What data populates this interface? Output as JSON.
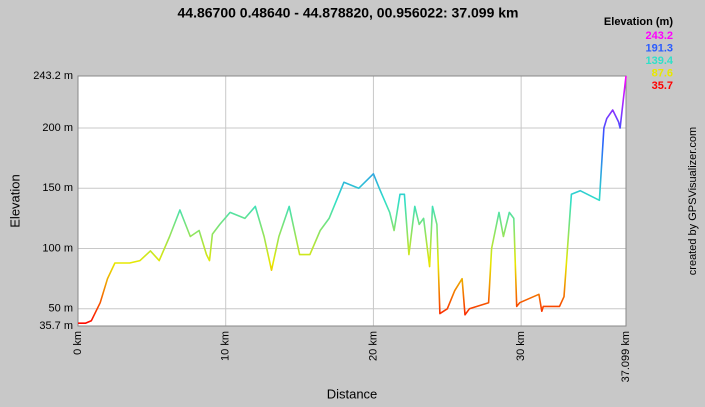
{
  "chart_data": {
    "type": "line",
    "title": "44.86700 0.48640 - 44.878820, 00.956022: 37.099 km",
    "x_label": "Distance",
    "y_label": "Elevation",
    "credit": "created by GPSVisualizer.com",
    "legend_title": "Elevation (m)",
    "color_scale": [
      {
        "value": 243.2,
        "color": "#ff00ff"
      },
      {
        "value": 191.3,
        "color": "#2a5cff"
      },
      {
        "value": 139.4,
        "color": "#30e0c8"
      },
      {
        "value": 87.6,
        "color": "#e8e800"
      },
      {
        "value": 35.7,
        "color": "#ff0000"
      }
    ],
    "grid": true,
    "xlim": [
      0,
      37.099
    ],
    "ylim": [
      35.7,
      243.2
    ],
    "xticks": [
      {
        "value": 0,
        "label": "0 km"
      },
      {
        "value": 10,
        "label": "10 km"
      },
      {
        "value": 20,
        "label": "20 km"
      },
      {
        "value": 30,
        "label": "30 km"
      },
      {
        "value": 37.099,
        "label": "37.099 km"
      }
    ],
    "yticks": [
      {
        "value": 35.7,
        "label": "35.7 m"
      },
      {
        "value": 50,
        "label": "50 m"
      },
      {
        "value": 100,
        "label": "100 m"
      },
      {
        "value": 150,
        "label": "150 m"
      },
      {
        "value": 200,
        "label": "200 m"
      },
      {
        "value": 243.2,
        "label": "243.2 m"
      }
    ],
    "x": [
      0,
      0.5,
      0.9,
      1.5,
      2,
      2.5,
      3.5,
      4.2,
      4.9,
      5.5,
      6.2,
      6.9,
      7.6,
      8.2,
      8.7,
      8.9,
      9.1,
      9.6,
      10.3,
      11.3,
      12,
      12.6,
      13.1,
      13.6,
      14.3,
      15,
      15.7,
      16.4,
      17,
      18,
      19,
      20,
      20.4,
      21.1,
      21.4,
      21.8,
      22.1,
      22.4,
      22.8,
      23.1,
      23.4,
      23.8,
      24,
      24.3,
      24.5,
      25,
      25.5,
      26,
      26.2,
      26.5,
      27.8,
      28,
      28.5,
      28.8,
      29.2,
      29.5,
      29.7,
      29.9,
      31.2,
      31.4,
      31.5,
      32.6,
      32.9,
      33.4,
      34,
      35.3,
      35.6,
      35.8,
      36.2,
      36.6,
      36.7,
      37.099
    ],
    "values": [
      38,
      38,
      40,
      55,
      75,
      88,
      88,
      90,
      98,
      90,
      110,
      132,
      110,
      115,
      95,
      90,
      112,
      120,
      130,
      125,
      135,
      110,
      82,
      110,
      135,
      95,
      95,
      115,
      125,
      155,
      150,
      162,
      150,
      130,
      115,
      145,
      145,
      95,
      135,
      120,
      125,
      85,
      135,
      120,
      46,
      50,
      65,
      75,
      45,
      50,
      55,
      100,
      130,
      110,
      130,
      125,
      52,
      55,
      62,
      48,
      52,
      52,
      60,
      145,
      148,
      140,
      200,
      208,
      215,
      205,
      200,
      243.2
    ]
  }
}
